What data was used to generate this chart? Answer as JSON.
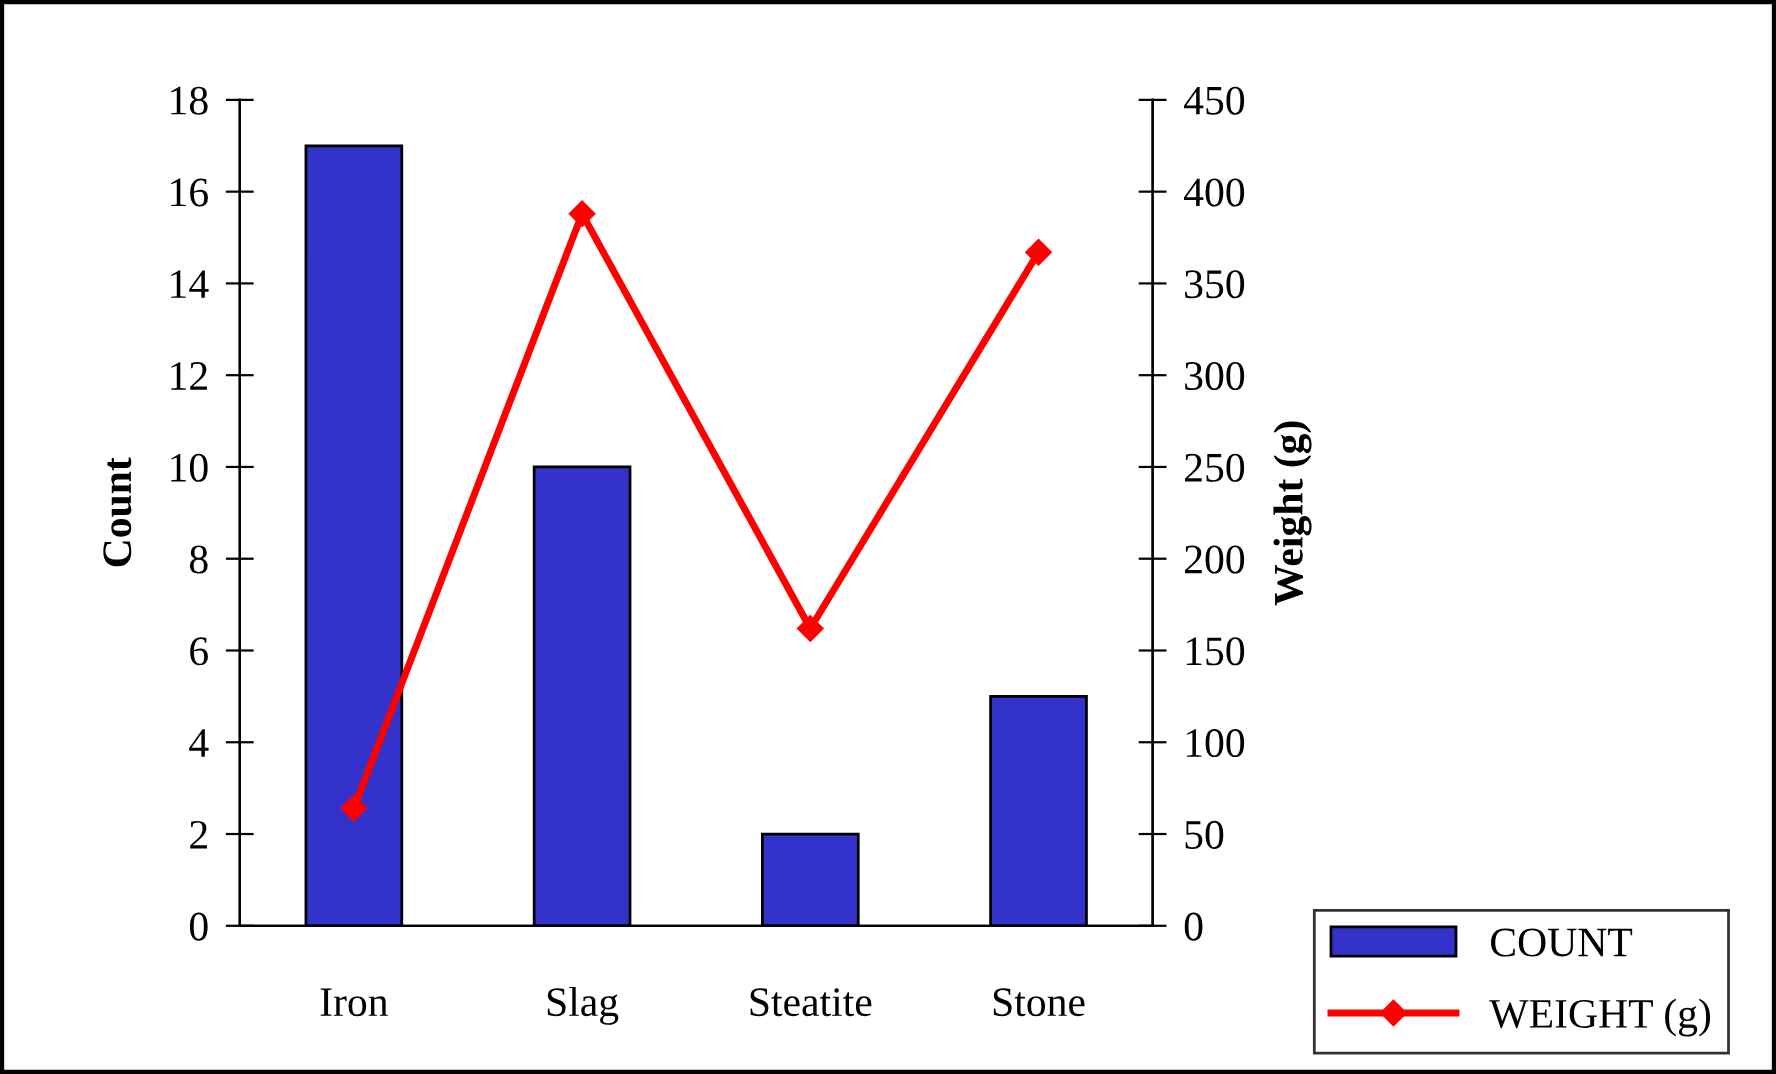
{
  "chart_data": {
    "type": "bar",
    "categories": [
      "Iron",
      "Slag",
      "Steatite",
      "Stone"
    ],
    "series": [
      {
        "name": "COUNT",
        "color": "#3333cc",
        "values": [
          17,
          10,
          2,
          5
        ]
      },
      {
        "name": "WEIGHT (g)",
        "type": "line",
        "axis": "y2",
        "color": "#ff0000",
        "marker": "diamond",
        "values": [
          64,
          388,
          162,
          367
        ]
      }
    ],
    "ylabel": "Count",
    "y2label": "Weight (g)",
    "ylim": [
      0,
      18
    ],
    "yticks": [
      0,
      2,
      4,
      6,
      8,
      10,
      12,
      14,
      16,
      18
    ],
    "y2lim": [
      0,
      450
    ],
    "y2ticks": [
      0,
      50,
      100,
      150,
      200,
      250,
      300,
      350,
      400,
      450
    ],
    "grid": false,
    "legend": "bottom right"
  }
}
